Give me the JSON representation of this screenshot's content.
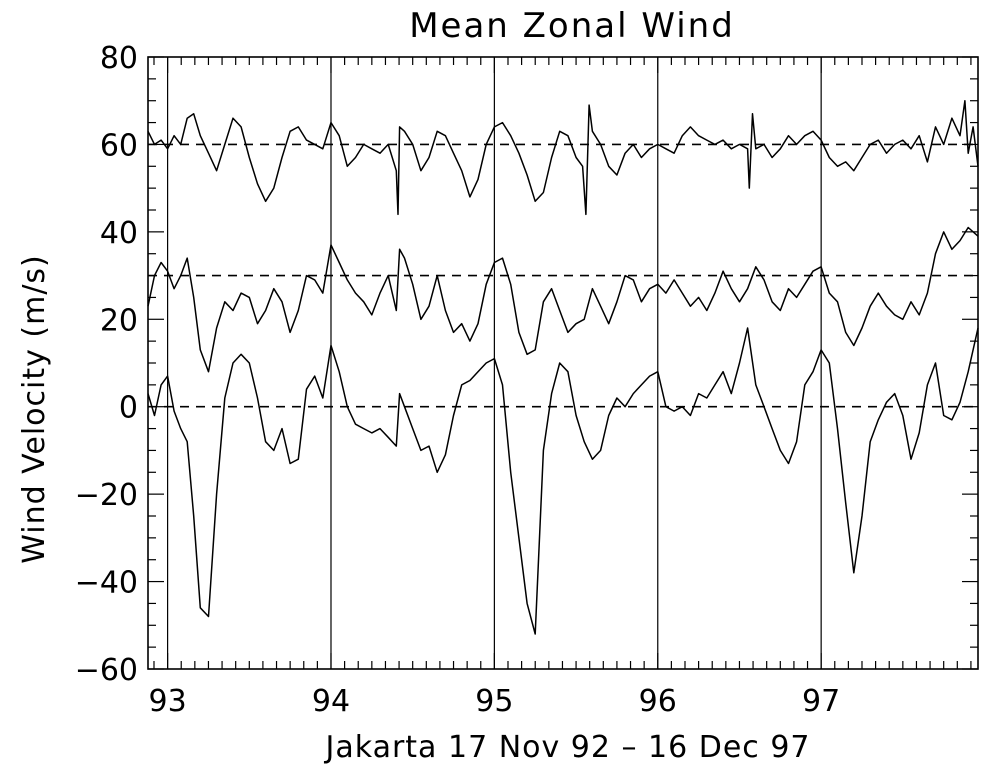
{
  "chart_data": {
    "type": "line",
    "title": "Mean Zonal Wind",
    "xlabel": "Jakarta  17 Nov 92 – 16 Dec 97",
    "ylabel": "Wind Velocity (m/s)",
    "x_unit": "year (decimal, 19xx)",
    "xlim": [
      92.88,
      97.96
    ],
    "ylim": [
      -60,
      80
    ],
    "x_ticks": [
      93,
      94,
      95,
      96,
      97
    ],
    "x_tick_labels": [
      "93",
      "94",
      "95",
      "96",
      "97"
    ],
    "y_ticks": [
      -60,
      -40,
      -20,
      0,
      20,
      40,
      60,
      80
    ],
    "y_tick_labels": [
      "−60",
      "−40",
      "−20",
      "0",
      "20",
      "40",
      "60",
      "80"
    ],
    "reference_lines_y": [
      0,
      30,
      60
    ],
    "reference_line_style": "dashed",
    "year_markers_x": [
      93,
      94,
      95,
      96,
      97
    ],
    "grid": false,
    "legend": "none",
    "line_color": "#000000",
    "series": [
      {
        "offset": 60,
        "x": [
          92.88,
          92.92,
          92.96,
          93.0,
          93.04,
          93.08,
          93.12,
          93.16,
          93.2,
          93.25,
          93.3,
          93.35,
          93.4,
          93.45,
          93.5,
          93.55,
          93.6,
          93.65,
          93.7,
          93.75,
          93.8,
          93.85,
          93.9,
          93.95,
          94.0,
          94.05,
          94.1,
          94.15,
          94.2,
          94.25,
          94.3,
          94.35,
          94.4,
          94.41,
          94.42,
          94.45,
          94.5,
          94.55,
          94.6,
          94.65,
          94.7,
          94.75,
          94.8,
          94.85,
          94.9,
          94.95,
          95.0,
          95.05,
          95.1,
          95.15,
          95.2,
          95.25,
          95.3,
          95.35,
          95.4,
          95.45,
          95.5,
          95.54,
          95.56,
          95.58,
          95.6,
          95.65,
          95.7,
          95.75,
          95.8,
          95.85,
          95.9,
          95.95,
          96.0,
          96.05,
          96.1,
          96.15,
          96.2,
          96.25,
          96.3,
          96.35,
          96.4,
          96.45,
          96.5,
          96.55,
          96.56,
          96.58,
          96.6,
          96.65,
          96.7,
          96.75,
          96.8,
          96.85,
          96.9,
          96.95,
          97.0,
          97.05,
          97.1,
          97.15,
          97.2,
          97.25,
          97.3,
          97.35,
          97.4,
          97.45,
          97.5,
          97.55,
          97.6,
          97.65,
          97.7,
          97.75,
          97.8,
          97.85,
          97.88,
          97.9,
          97.93,
          97.96
        ],
        "y": [
          63,
          60,
          61,
          59,
          62,
          60,
          66,
          67,
          62,
          58,
          54,
          60,
          66,
          64,
          57,
          51,
          47,
          50,
          57,
          63,
          64,
          61,
          60,
          59,
          65,
          62,
          55,
          57,
          60,
          59,
          58,
          60,
          54,
          44,
          64,
          63,
          60,
          54,
          57,
          63,
          62,
          58,
          54,
          48,
          52,
          60,
          64,
          65,
          62,
          58,
          53,
          47,
          49,
          57,
          63,
          62,
          57,
          55,
          44,
          69,
          63,
          60,
          55,
          53,
          58,
          60,
          57,
          59,
          60,
          59,
          58,
          62,
          64,
          62,
          61,
          60,
          61,
          59,
          60,
          59,
          50,
          67,
          59,
          60,
          57,
          59,
          62,
          60,
          62,
          63,
          61,
          57,
          55,
          56,
          54,
          57,
          60,
          61,
          58,
          60,
          61,
          59,
          62,
          56,
          64,
          60,
          66,
          62,
          70,
          58,
          64,
          55
        ]
      },
      {
        "offset": 30,
        "x": [
          92.88,
          92.92,
          92.96,
          93.0,
          93.04,
          93.08,
          93.12,
          93.16,
          93.2,
          93.25,
          93.3,
          93.35,
          93.4,
          93.45,
          93.5,
          93.55,
          93.6,
          93.65,
          93.7,
          93.75,
          93.8,
          93.85,
          93.9,
          93.95,
          94.0,
          94.05,
          94.1,
          94.15,
          94.2,
          94.25,
          94.3,
          94.35,
          94.4,
          94.42,
          94.45,
          94.5,
          94.55,
          94.6,
          94.65,
          94.7,
          94.75,
          94.8,
          94.85,
          94.9,
          94.95,
          95.0,
          95.05,
          95.1,
          95.15,
          95.2,
          95.25,
          95.3,
          95.35,
          95.4,
          95.45,
          95.5,
          95.55,
          95.6,
          95.65,
          95.7,
          95.75,
          95.8,
          95.85,
          95.9,
          95.95,
          96.0,
          96.05,
          96.1,
          96.15,
          96.2,
          96.25,
          96.3,
          96.35,
          96.4,
          96.45,
          96.5,
          96.55,
          96.6,
          96.65,
          96.7,
          96.75,
          96.8,
          96.85,
          96.9,
          96.95,
          97.0,
          97.05,
          97.1,
          97.15,
          97.2,
          97.25,
          97.3,
          97.35,
          97.4,
          97.45,
          97.5,
          97.55,
          97.6,
          97.65,
          97.7,
          97.75,
          97.8,
          97.85,
          97.9,
          97.96
        ],
        "y": [
          23,
          30,
          33,
          31,
          27,
          30,
          34,
          25,
          13,
          8,
          18,
          24,
          22,
          26,
          25,
          19,
          22,
          27,
          24,
          17,
          22,
          30,
          29,
          26,
          37,
          33,
          29,
          26,
          24,
          21,
          26,
          30,
          22,
          36,
          34,
          28,
          20,
          23,
          30,
          22,
          17,
          19,
          15,
          19,
          28,
          33,
          34,
          28,
          17,
          12,
          13,
          24,
          27,
          22,
          17,
          19,
          20,
          27,
          23,
          19,
          24,
          30,
          29,
          24,
          27,
          28,
          26,
          29,
          26,
          23,
          25,
          22,
          26,
          31,
          27,
          24,
          27,
          32,
          29,
          24,
          22,
          27,
          25,
          28,
          31,
          32,
          26,
          24,
          17,
          14,
          18,
          23,
          26,
          23,
          21,
          20,
          24,
          21,
          26,
          35,
          40,
          36,
          38,
          41,
          39
        ]
      },
      {
        "offset": 0,
        "x": [
          92.88,
          92.92,
          92.96,
          93.0,
          93.04,
          93.08,
          93.12,
          93.16,
          93.2,
          93.25,
          93.3,
          93.35,
          93.4,
          93.45,
          93.5,
          93.55,
          93.6,
          93.65,
          93.7,
          93.75,
          93.8,
          93.85,
          93.9,
          93.95,
          94.0,
          94.05,
          94.1,
          94.15,
          94.2,
          94.25,
          94.3,
          94.35,
          94.4,
          94.42,
          94.45,
          94.5,
          94.55,
          94.6,
          94.65,
          94.7,
          94.75,
          94.8,
          94.85,
          94.9,
          94.95,
          95.0,
          95.05,
          95.1,
          95.15,
          95.2,
          95.25,
          95.3,
          95.35,
          95.4,
          95.45,
          95.5,
          95.55,
          95.6,
          95.65,
          95.7,
          95.75,
          95.8,
          95.85,
          95.9,
          95.95,
          96.0,
          96.05,
          96.1,
          96.15,
          96.2,
          96.25,
          96.3,
          96.35,
          96.4,
          96.45,
          96.5,
          96.55,
          96.6,
          96.65,
          96.7,
          96.75,
          96.8,
          96.85,
          96.9,
          96.95,
          97.0,
          97.05,
          97.1,
          97.15,
          97.2,
          97.25,
          97.3,
          97.35,
          97.4,
          97.45,
          97.5,
          97.55,
          97.6,
          97.65,
          97.7,
          97.75,
          97.8,
          97.85,
          97.9,
          97.96
        ],
        "y": [
          3,
          -2,
          5,
          7,
          -1,
          -5,
          -8,
          -25,
          -46,
          -48,
          -20,
          2,
          10,
          12,
          10,
          2,
          -8,
          -10,
          -5,
          -13,
          -12,
          4,
          7,
          2,
          14,
          8,
          0,
          -4,
          -5,
          -6,
          -5,
          -7,
          -9,
          3,
          0,
          -5,
          -10,
          -9,
          -15,
          -11,
          -2,
          5,
          6,
          8,
          10,
          11,
          5,
          -15,
          -30,
          -45,
          -52,
          -10,
          3,
          10,
          8,
          -2,
          -8,
          -12,
          -10,
          -2,
          2,
          0,
          3,
          5,
          7,
          8,
          0,
          -1,
          0,
          -2,
          3,
          2,
          5,
          8,
          3,
          10,
          18,
          5,
          0,
          -5,
          -10,
          -13,
          -8,
          5,
          8,
          13,
          10,
          -5,
          -22,
          -38,
          -25,
          -8,
          -3,
          1,
          3,
          -2,
          -12,
          -6,
          5,
          10,
          -2,
          -3,
          1,
          8,
          18
        ]
      }
    ]
  }
}
